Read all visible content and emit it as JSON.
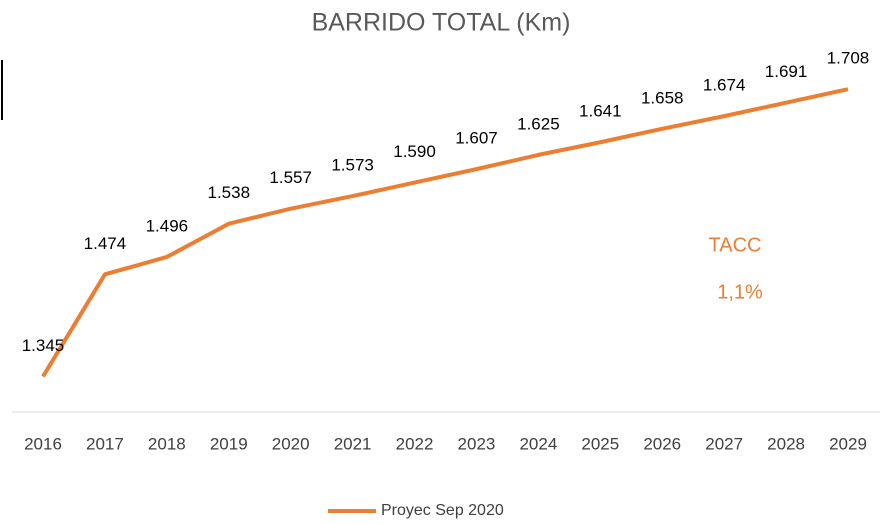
{
  "chart_data": {
    "type": "line",
    "title": "BARRIDO TOTAL (Km)",
    "categories": [
      "2016",
      "2017",
      "2018",
      "2019",
      "2020",
      "2021",
      "2022",
      "2023",
      "2024",
      "2025",
      "2026",
      "2027",
      "2028",
      "2029"
    ],
    "series": [
      {
        "name": "Proyec Sep 2020",
        "color": "#ed7d31",
        "values": [
          1345,
          1474,
          1496,
          1538,
          1557,
          1573,
          1590,
          1607,
          1625,
          1641,
          1658,
          1674,
          1691,
          1708
        ],
        "value_labels": [
          "1.345",
          "1.474",
          "1.496",
          "1.538",
          "1.557",
          "1.573",
          "1.590",
          "1.607",
          "1.625",
          "1.641",
          "1.658",
          "1.674",
          "1.691",
          "1.708"
        ]
      }
    ],
    "ylim": [
      1300,
      1750
    ],
    "annotations": [
      "TACC",
      "1,1%"
    ],
    "legend": "bottom"
  }
}
